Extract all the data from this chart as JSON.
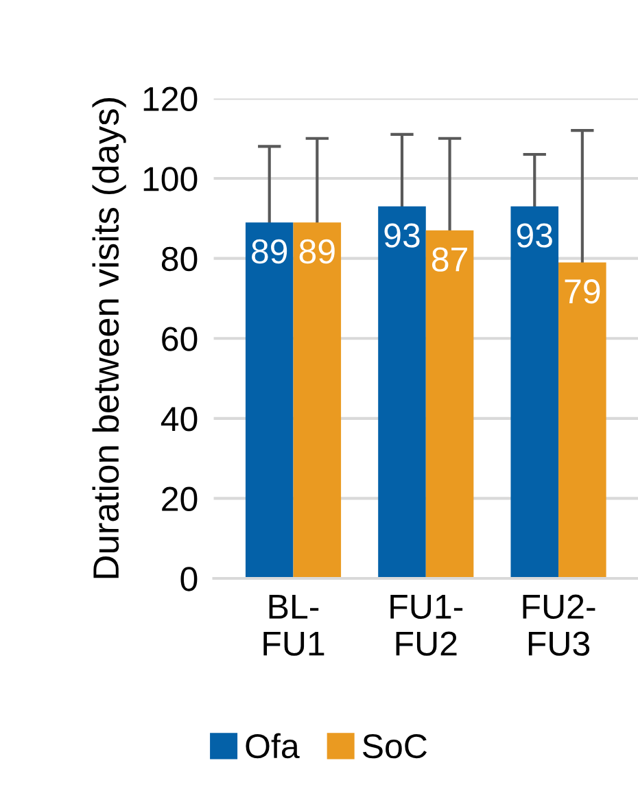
{
  "chart_data": {
    "type": "bar",
    "ylabel": "Duration between visits (days)",
    "categories": [
      "BL-\nFU1",
      "FU1-\nFU2",
      "FU2-\nFU3"
    ],
    "series": [
      {
        "name": "Ofa",
        "color": "#0461a8",
        "values": [
          89,
          93,
          93
        ],
        "errors": [
          19,
          18,
          13
        ]
      },
      {
        "name": "SoC",
        "color": "#ea9a21",
        "values": [
          89,
          87,
          79
        ],
        "errors": [
          21,
          23,
          33
        ]
      }
    ],
    "ylim": [
      0,
      120
    ],
    "yticks": [
      0,
      20,
      40,
      60,
      80,
      100,
      120
    ],
    "grid": "y",
    "legend": "bottom",
    "data_labels": true
  }
}
